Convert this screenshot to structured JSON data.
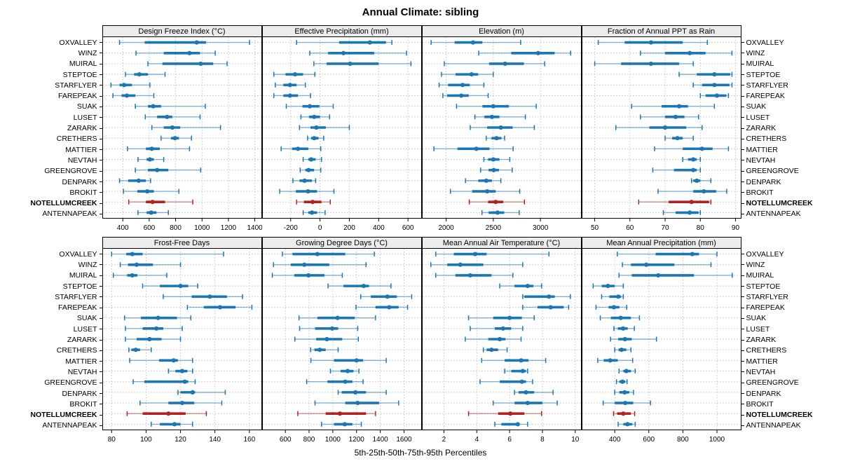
{
  "title": "Annual Climate: sibling",
  "xlabel": "5th-25th-50th-75th-95th Percentiles",
  "sites": [
    "OXVALLEY",
    "WINZ",
    "MUIRAL",
    "STEPTOE",
    "STARFLYER",
    "FAREPEAK",
    "SUAK",
    "LUSET",
    "ZARARK",
    "CRETHERS",
    "MATTIER",
    "NEVTAH",
    "GREENGROVE",
    "DENPARK",
    "BROKIT",
    "NOTELLUMCREEK",
    "ANTENNAPEAK"
  ],
  "highlight_site": "NOTELLUMCREEK",
  "colors": {
    "series": "#1a76b4",
    "highlight": "#b22222",
    "grid": "#c0c0c0",
    "strip_bg": "#ececec",
    "panel_border": "#000000"
  },
  "chart_data": {
    "type": "dotplot-percentiles",
    "percentile_labels": [
      "5th",
      "25th",
      "50th",
      "75th",
      "95th"
    ],
    "grid": "dotted",
    "panels": [
      {
        "row": 0,
        "title": "Design Freeze Index (°C)",
        "domain": [
          250,
          1450
        ],
        "ticks": [
          400,
          600,
          800,
          1000,
          1200,
          1400
        ],
        "values": [
          [
            375,
            565,
            960,
            1030,
            1360
          ],
          [
            500,
            710,
            905,
            985,
            1100
          ],
          [
            590,
            700,
            990,
            1085,
            1190
          ],
          [
            420,
            485,
            525,
            590,
            720
          ],
          [
            310,
            375,
            410,
            470,
            605
          ],
          [
            325,
            390,
            430,
            495,
            635
          ],
          [
            495,
            590,
            630,
            690,
            1025
          ],
          [
            570,
            660,
            735,
            775,
            985
          ],
          [
            620,
            710,
            775,
            835,
            1140
          ],
          [
            690,
            765,
            795,
            825,
            920
          ],
          [
            435,
            575,
            620,
            680,
            905
          ],
          [
            515,
            580,
            605,
            635,
            710
          ],
          [
            495,
            590,
            660,
            745,
            990
          ],
          [
            375,
            440,
            520,
            575,
            610
          ],
          [
            405,
            510,
            585,
            635,
            825
          ],
          [
            445,
            575,
            625,
            720,
            930
          ],
          [
            515,
            580,
            615,
            655,
            745
          ]
        ]
      },
      {
        "row": 0,
        "title": "Effective Precipitation (mm)",
        "domain": [
          -390,
          690
        ],
        "ticks": [
          -200,
          0,
          200,
          400,
          600
        ],
        "values": [
          [
            -160,
            130,
            340,
            450,
            490
          ],
          [
            -70,
            55,
            160,
            370,
            590
          ],
          [
            -42,
            45,
            205,
            400,
            620
          ],
          [
            -315,
            -235,
            -170,
            -115,
            -35
          ],
          [
            -305,
            -250,
            -205,
            -160,
            -100
          ],
          [
            -315,
            -250,
            -205,
            -150,
            -65
          ],
          [
            -230,
            -120,
            -70,
            -5,
            90
          ],
          [
            -130,
            -75,
            -40,
            0,
            65
          ],
          [
            -140,
            -65,
            -25,
            40,
            200
          ],
          [
            -85,
            -60,
            -40,
            -10,
            25
          ],
          [
            -265,
            -190,
            -150,
            -80,
            5
          ],
          [
            -115,
            -80,
            -60,
            -30,
            10
          ],
          [
            -135,
            -100,
            -78,
            -40,
            5
          ],
          [
            -185,
            -140,
            -105,
            -55,
            -30
          ],
          [
            -275,
            -165,
            -82,
            -20,
            95
          ],
          [
            -160,
            -110,
            -50,
            10,
            70
          ],
          [
            -115,
            -80,
            -55,
            -20,
            35
          ]
        ]
      },
      {
        "row": 0,
        "title": "Elevation (m)",
        "domain": [
          1750,
          3430
        ],
        "ticks": [
          2000,
          2500,
          3000
        ],
        "values": [
          [
            1840,
            2090,
            2285,
            2385,
            2790
          ],
          [
            2345,
            2690,
            2975,
            3150,
            3320
          ],
          [
            1980,
            2455,
            2625,
            2825,
            3045
          ],
          [
            1950,
            2100,
            2270,
            2340,
            2500
          ],
          [
            1925,
            2020,
            2175,
            2250,
            2400
          ],
          [
            1965,
            2010,
            2160,
            2240,
            2445
          ],
          [
            2110,
            2385,
            2500,
            2665,
            2955
          ],
          [
            2305,
            2405,
            2485,
            2565,
            2840
          ],
          [
            2255,
            2435,
            2580,
            2705,
            2935
          ],
          [
            2425,
            2480,
            2535,
            2585,
            2620
          ],
          [
            1870,
            2120,
            2320,
            2460,
            2710
          ],
          [
            2400,
            2445,
            2500,
            2565,
            2675
          ],
          [
            2365,
            2450,
            2505,
            2560,
            2700
          ],
          [
            2205,
            2340,
            2425,
            2485,
            2580
          ],
          [
            2045,
            2275,
            2435,
            2525,
            2780
          ],
          [
            2245,
            2445,
            2525,
            2605,
            2830
          ],
          [
            2380,
            2450,
            2545,
            2615,
            2775
          ]
        ]
      },
      {
        "row": 0,
        "title": "Fraction of Annual PPT as Rain",
        "domain": [
          46.5,
          91.5
        ],
        "ticks": [
          50,
          60,
          70,
          80,
          90
        ],
        "values": [
          [
            51,
            58.5,
            66,
            75,
            82
          ],
          [
            63,
            70,
            77,
            81.5,
            89
          ],
          [
            50,
            57.5,
            66,
            74,
            78
          ],
          [
            74,
            79,
            84,
            88.5,
            89
          ],
          [
            78,
            80.5,
            84,
            88.3,
            89
          ],
          [
            80,
            81.5,
            84.7,
            87.4,
            88
          ],
          [
            60.5,
            69,
            74,
            76.5,
            84
          ],
          [
            63,
            70,
            73,
            75.5,
            79.5
          ],
          [
            56,
            65.5,
            70,
            76,
            80.5
          ],
          [
            70,
            72,
            73.5,
            75,
            78
          ],
          [
            67,
            75,
            80.5,
            83.5,
            88
          ],
          [
            75,
            76.5,
            78,
            79,
            80
          ],
          [
            66.5,
            72.5,
            78,
            79,
            80
          ],
          [
            77.5,
            78,
            79,
            80,
            83
          ],
          [
            68,
            78,
            81,
            84.5,
            87.5
          ],
          [
            62.5,
            71,
            77.5,
            82.5,
            83
          ],
          [
            69.5,
            73,
            77,
            79.5,
            80
          ]
        ]
      },
      {
        "row": 1,
        "title": "Frost-Free Days",
        "domain": [
          75,
          167
        ],
        "ticks": [
          80,
          100,
          120,
          140,
          160
        ],
        "values": [
          [
            80,
            88.5,
            92,
            98,
            145
          ],
          [
            85,
            89.5,
            94.5,
            104,
            120
          ],
          [
            81,
            89,
            92,
            95,
            112
          ],
          [
            98,
            108,
            120,
            124.5,
            130
          ],
          [
            110,
            126.5,
            137,
            147,
            156
          ],
          [
            124,
            133.5,
            143,
            152,
            161.5
          ],
          [
            87.5,
            97,
            107,
            118,
            126
          ],
          [
            88,
            98,
            106,
            110,
            121
          ],
          [
            88,
            94.5,
            102,
            109,
            120
          ],
          [
            90,
            91.5,
            94,
            96.5,
            103
          ],
          [
            90.5,
            107.5,
            116,
            118.5,
            127
          ],
          [
            113,
            117,
            121,
            124,
            127
          ],
          [
            92.5,
            99,
            122.5,
            124.5,
            128.5
          ],
          [
            118.5,
            120,
            127,
            128.5,
            146
          ],
          [
            96.5,
            113,
            121,
            128,
            144
          ],
          [
            89,
            98,
            113,
            123,
            135
          ],
          [
            103,
            108,
            116.5,
            120,
            127
          ]
        ]
      },
      {
        "row": 1,
        "title": "Growing Degree Days (°C)",
        "domain": [
          410,
          1745
        ],
        "ticks": [
          600,
          800,
          1000,
          1200,
          1400,
          1600
        ],
        "values": [
          [
            575,
            660,
            870,
            1105,
            1350
          ],
          [
            500,
            645,
            760,
            970,
            1280
          ],
          [
            490,
            675,
            795,
            930,
            1080
          ],
          [
            960,
            1090,
            1260,
            1305,
            1490
          ],
          [
            1235,
            1320,
            1460,
            1540,
            1665
          ],
          [
            1195,
            1360,
            1475,
            1555,
            1630
          ],
          [
            715,
            870,
            1040,
            1185,
            1360
          ],
          [
            720,
            850,
            995,
            1045,
            1210
          ],
          [
            680,
            860,
            950,
            1080,
            1215
          ],
          [
            813,
            845,
            890,
            940,
            1045
          ],
          [
            815,
            1010,
            1200,
            1255,
            1450
          ],
          [
            980,
            1065,
            1125,
            1175,
            1220
          ],
          [
            780,
            955,
            1105,
            1165,
            1255
          ],
          [
            1045,
            1075,
            1190,
            1280,
            1450
          ],
          [
            850,
            1105,
            1210,
            1390,
            1555
          ],
          [
            705,
            940,
            1060,
            1280,
            1360
          ],
          [
            905,
            1010,
            1100,
            1165,
            1240
          ]
        ]
      },
      {
        "row": 1,
        "title": "Mean Annual Air Temperature (°C)",
        "domain": [
          0.7,
          10.35
        ],
        "ticks": [
          2,
          4,
          6,
          8,
          10
        ],
        "values": [
          [
            1.5,
            2.6,
            3.9,
            4.6,
            8.4
          ],
          [
            1.2,
            2.2,
            3.0,
            4.4,
            6.8
          ],
          [
            1.5,
            2.7,
            3.6,
            4.9,
            6.2
          ],
          [
            5.4,
            6.3,
            7.1,
            7.45,
            7.95
          ],
          [
            6.8,
            6.9,
            8.4,
            8.75,
            9.7
          ],
          [
            6.8,
            7.7,
            8.5,
            9.3,
            9.6
          ],
          [
            3.5,
            5.0,
            6.0,
            6.75,
            7.5
          ],
          [
            3.6,
            5.1,
            5.6,
            6.1,
            6.8
          ],
          [
            3.3,
            4.7,
            5.4,
            5.75,
            6.7
          ],
          [
            4.4,
            4.6,
            4.9,
            5.3,
            5.85
          ],
          [
            4.3,
            5.7,
            6.7,
            7.15,
            8.2
          ],
          [
            5.7,
            6.1,
            6.8,
            7.0,
            7.1
          ],
          [
            4.2,
            5.4,
            6.75,
            7.0,
            7.4
          ],
          [
            6.3,
            6.55,
            7.0,
            7.5,
            8.65
          ],
          [
            5.0,
            6.3,
            7.1,
            8.0,
            8.9
          ],
          [
            3.5,
            5.3,
            6.05,
            6.9,
            7.95
          ],
          [
            5.1,
            5.5,
            6.5,
            6.6,
            7.1
          ]
        ]
      },
      {
        "row": 1,
        "title": "Mean Annual Precipitation (mm)",
        "domain": [
          210,
          1140
        ],
        "ticks": [
          400,
          600,
          800,
          1000
        ],
        "values": [
          [
            415,
            640,
            855,
            895,
            1000
          ],
          [
            445,
            495,
            585,
            750,
            965
          ],
          [
            425,
            500,
            655,
            865,
            1090
          ],
          [
            273,
            323,
            360,
            400,
            450
          ],
          [
            323,
            368,
            420,
            437,
            450
          ],
          [
            290,
            364,
            395,
            427,
            470
          ],
          [
            315,
            377,
            435,
            495,
            545
          ],
          [
            395,
            418,
            449,
            476,
            515
          ],
          [
            375,
            420,
            460,
            500,
            645
          ],
          [
            400,
            422,
            440,
            468,
            495
          ],
          [
            300,
            335,
            373,
            418,
            505
          ],
          [
            425,
            450,
            468,
            495,
            520
          ],
          [
            410,
            427,
            445,
            462,
            472
          ],
          [
            400,
            427,
            458,
            485,
            510
          ],
          [
            332,
            400,
            462,
            508,
            610
          ],
          [
            393,
            414,
            450,
            495,
            517
          ],
          [
            420,
            450,
            475,
            503,
            520
          ]
        ]
      }
    ]
  }
}
